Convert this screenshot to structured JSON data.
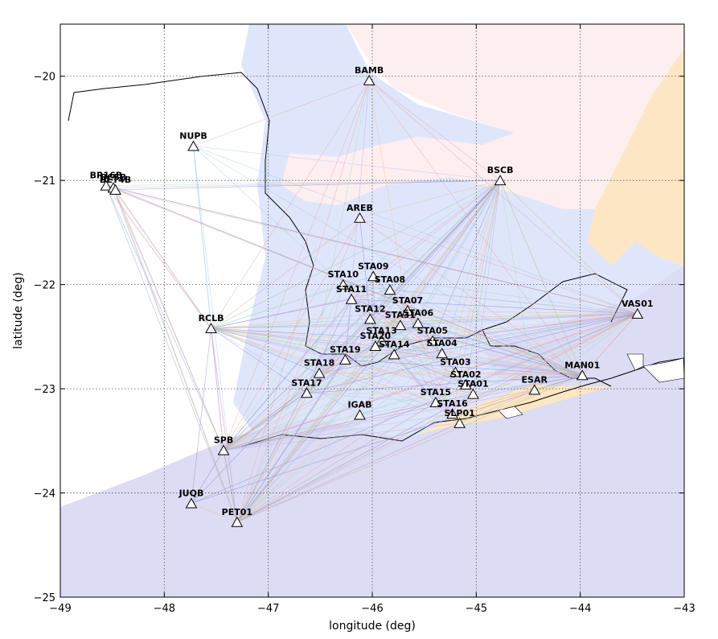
{
  "chart_data": {
    "type": "scatter",
    "xlabel": "longitude (deg)",
    "ylabel": "latitude (deg)",
    "xlim": [
      -49,
      -43
    ],
    "ylim": [
      -25,
      -19.5
    ],
    "grid": true,
    "x_ticks": [
      -49,
      -48,
      -47,
      -46,
      -45,
      -44,
      -43
    ],
    "y_ticks": [
      -25,
      -24,
      -23,
      -22,
      -21,
      -20
    ],
    "x_tick_labels": [
      "−49",
      "−48",
      "−47",
      "−46",
      "−45",
      "−44",
      "−43"
    ],
    "y_tick_labels": [
      "−25",
      "−24",
      "−23",
      "−22",
      "−21",
      "−20"
    ],
    "colors": {
      "ocean": "#dcdcf5",
      "land_blue": "#dfe6fb",
      "land_pink": "#fdeef0",
      "land_orange": "#fde6c3",
      "path_colors": [
        "#e8a0a0",
        "#a0c8e8",
        "#a0e0b0",
        "#c8a0e8",
        "#8080d0",
        "#f0c080"
      ]
    },
    "stations": [
      {
        "name": "BAMB",
        "lon": -46.03,
        "lat": -20.04
      },
      {
        "name": "NUPB",
        "lon": -47.72,
        "lat": -20.67
      },
      {
        "name": "BSCB",
        "lon": -44.77,
        "lat": -21.0
      },
      {
        "name": "BR16B",
        "lon": -48.56,
        "lat": -21.05
      },
      {
        "name": "BC5B",
        "lon": -48.49,
        "lat": -21.07
      },
      {
        "name": "BET4B",
        "lon": -48.47,
        "lat": -21.09
      },
      {
        "name": "AREB",
        "lon": -46.12,
        "lat": -21.36
      },
      {
        "name": "STA09",
        "lon": -45.99,
        "lat": -21.92
      },
      {
        "name": "STA10",
        "lon": -46.28,
        "lat": -22.0
      },
      {
        "name": "STA08",
        "lon": -45.83,
        "lat": -22.05
      },
      {
        "name": "STA11",
        "lon": -46.2,
        "lat": -22.14
      },
      {
        "name": "STA07",
        "lon": -45.66,
        "lat": -22.25
      },
      {
        "name": "VAS01",
        "lon": -43.45,
        "lat": -22.28
      },
      {
        "name": "STA12",
        "lon": -46.02,
        "lat": -22.33
      },
      {
        "name": "STA06",
        "lon": -45.56,
        "lat": -22.37
      },
      {
        "name": "RCLB",
        "lon": -47.55,
        "lat": -22.42
      },
      {
        "name": "STA31",
        "lon": -45.73,
        "lat": -22.39
      },
      {
        "name": "STA05",
        "lon": -45.42,
        "lat": -22.54
      },
      {
        "name": "STA13",
        "lon": -45.91,
        "lat": -22.54
      },
      {
        "name": "STA20",
        "lon": -45.97,
        "lat": -22.59
      },
      {
        "name": "STA04",
        "lon": -45.33,
        "lat": -22.66
      },
      {
        "name": "STA14",
        "lon": -45.79,
        "lat": -22.67
      },
      {
        "name": "STA19",
        "lon": -46.26,
        "lat": -22.72
      },
      {
        "name": "STA18",
        "lon": -46.51,
        "lat": -22.85
      },
      {
        "name": "STA03",
        "lon": -45.2,
        "lat": -22.84
      },
      {
        "name": "MAN01",
        "lon": -43.98,
        "lat": -22.87
      },
      {
        "name": "STA02",
        "lon": -45.1,
        "lat": -22.96
      },
      {
        "name": "ESAR",
        "lon": -44.44,
        "lat": -23.01
      },
      {
        "name": "STA01",
        "lon": -45.03,
        "lat": -23.05
      },
      {
        "name": "STA17",
        "lon": -46.63,
        "lat": -23.04
      },
      {
        "name": "STA15",
        "lon": -45.39,
        "lat": -23.13
      },
      {
        "name": "STA16",
        "lon": -45.23,
        "lat": -23.24
      },
      {
        "name": "IGAB",
        "lon": -46.12,
        "lat": -23.25
      },
      {
        "name": "SLP01",
        "lon": -45.16,
        "lat": -23.33
      },
      {
        "name": "SPB",
        "lon": -47.43,
        "lat": -23.59
      },
      {
        "name": "JUQB",
        "lon": -47.74,
        "lat": -24.1
      },
      {
        "name": "PET01",
        "lon": -47.3,
        "lat": -24.28
      }
    ],
    "hubs": [
      "BSCB",
      "SPB",
      "RCLB",
      "VAS01",
      "PET01",
      "MAN01",
      "BR16B"
    ],
    "extra_paths": [
      [
        "NUPB",
        "BAMB"
      ],
      [
        "NUPB",
        "STA10"
      ],
      [
        "BAMB",
        "STA17"
      ],
      [
        "BAMB",
        "STA19"
      ],
      [
        "AREB",
        "STA12"
      ],
      [
        "BAMB",
        "STA07"
      ]
    ]
  }
}
